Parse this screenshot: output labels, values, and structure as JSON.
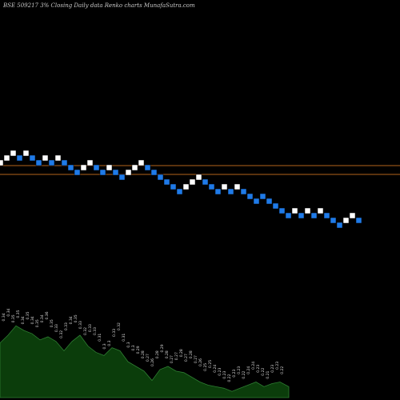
{
  "header": {
    "text": "BSE 509217 3% Closing Daily data Renko charts MunafaSutra.com"
  },
  "chart_data": {
    "type": "renko",
    "box_size": "3%",
    "x_range": [
      0,
      60
    ],
    "y_range": [
      0,
      290
    ],
    "reference_lines": [
      207,
      218
    ],
    "colors": {
      "up_brick": "#ffffff",
      "down_brick": "#1f7ae8",
      "brick_border": "#000000",
      "reference_line": "#b5651d",
      "volume_fill": "#0b3d0b",
      "volume_line": "#2e7d32",
      "background": "#000000"
    },
    "bricks": [
      {
        "x": 0,
        "y": 204,
        "dir": "up"
      },
      {
        "x": 1,
        "y": 198,
        "dir": "up"
      },
      {
        "x": 2,
        "y": 192,
        "dir": "up"
      },
      {
        "x": 3,
        "y": 198,
        "dir": "down"
      },
      {
        "x": 4,
        "y": 192,
        "dir": "up"
      },
      {
        "x": 5,
        "y": 198,
        "dir": "down"
      },
      {
        "x": 6,
        "y": 204,
        "dir": "down"
      },
      {
        "x": 7,
        "y": 198,
        "dir": "up"
      },
      {
        "x": 8,
        "y": 204,
        "dir": "down"
      },
      {
        "x": 9,
        "y": 198,
        "dir": "up"
      },
      {
        "x": 10,
        "y": 204,
        "dir": "down"
      },
      {
        "x": 11,
        "y": 210,
        "dir": "down"
      },
      {
        "x": 12,
        "y": 216,
        "dir": "down"
      },
      {
        "x": 13,
        "y": 210,
        "dir": "up"
      },
      {
        "x": 14,
        "y": 204,
        "dir": "up"
      },
      {
        "x": 15,
        "y": 210,
        "dir": "down"
      },
      {
        "x": 16,
        "y": 216,
        "dir": "down"
      },
      {
        "x": 17,
        "y": 210,
        "dir": "up"
      },
      {
        "x": 18,
        "y": 216,
        "dir": "down"
      },
      {
        "x": 19,
        "y": 222,
        "dir": "down"
      },
      {
        "x": 20,
        "y": 216,
        "dir": "up"
      },
      {
        "x": 21,
        "y": 210,
        "dir": "up"
      },
      {
        "x": 22,
        "y": 204,
        "dir": "up"
      },
      {
        "x": 23,
        "y": 210,
        "dir": "down"
      },
      {
        "x": 24,
        "y": 216,
        "dir": "down"
      },
      {
        "x": 25,
        "y": 222,
        "dir": "down"
      },
      {
        "x": 26,
        "y": 228,
        "dir": "down"
      },
      {
        "x": 27,
        "y": 234,
        "dir": "down"
      },
      {
        "x": 28,
        "y": 240,
        "dir": "down"
      },
      {
        "x": 29,
        "y": 234,
        "dir": "up"
      },
      {
        "x": 30,
        "y": 228,
        "dir": "up"
      },
      {
        "x": 31,
        "y": 222,
        "dir": "up"
      },
      {
        "x": 32,
        "y": 228,
        "dir": "down"
      },
      {
        "x": 33,
        "y": 234,
        "dir": "down"
      },
      {
        "x": 34,
        "y": 240,
        "dir": "down"
      },
      {
        "x": 35,
        "y": 234,
        "dir": "up"
      },
      {
        "x": 36,
        "y": 240,
        "dir": "down"
      },
      {
        "x": 37,
        "y": 234,
        "dir": "up"
      },
      {
        "x": 38,
        "y": 240,
        "dir": "down"
      },
      {
        "x": 39,
        "y": 246,
        "dir": "down"
      },
      {
        "x": 40,
        "y": 252,
        "dir": "down"
      },
      {
        "x": 41,
        "y": 246,
        "dir": "down"
      },
      {
        "x": 42,
        "y": 252,
        "dir": "down"
      },
      {
        "x": 43,
        "y": 258,
        "dir": "down"
      },
      {
        "x": 44,
        "y": 264,
        "dir": "down"
      },
      {
        "x": 45,
        "y": 270,
        "dir": "down"
      },
      {
        "x": 46,
        "y": 264,
        "dir": "up"
      },
      {
        "x": 47,
        "y": 270,
        "dir": "down"
      },
      {
        "x": 48,
        "y": 264,
        "dir": "up"
      },
      {
        "x": 49,
        "y": 270,
        "dir": "down"
      },
      {
        "x": 50,
        "y": 264,
        "dir": "up"
      },
      {
        "x": 51,
        "y": 270,
        "dir": "down"
      },
      {
        "x": 52,
        "y": 276,
        "dir": "down"
      },
      {
        "x": 53,
        "y": 282,
        "dir": "down"
      },
      {
        "x": 54,
        "y": 276,
        "dir": "up"
      },
      {
        "x": 55,
        "y": 270,
        "dir": "up"
      },
      {
        "x": 56,
        "y": 276,
        "dir": "down"
      }
    ],
    "volume": {
      "range": [
        0,
        120
      ],
      "x_range": [
        0,
        361
      ],
      "profile": [
        {
          "x": 0,
          "v": 70
        },
        {
          "x": 10,
          "v": 80
        },
        {
          "x": 20,
          "v": 92
        },
        {
          "x": 30,
          "v": 86
        },
        {
          "x": 40,
          "v": 82
        },
        {
          "x": 50,
          "v": 74
        },
        {
          "x": 60,
          "v": 78
        },
        {
          "x": 70,
          "v": 72
        },
        {
          "x": 80,
          "v": 60
        },
        {
          "x": 90,
          "v": 72
        },
        {
          "x": 100,
          "v": 80
        },
        {
          "x": 110,
          "v": 66
        },
        {
          "x": 120,
          "v": 58
        },
        {
          "x": 130,
          "v": 54
        },
        {
          "x": 140,
          "v": 64
        },
        {
          "x": 150,
          "v": 60
        },
        {
          "x": 160,
          "v": 46
        },
        {
          "x": 170,
          "v": 40
        },
        {
          "x": 180,
          "v": 34
        },
        {
          "x": 190,
          "v": 22
        },
        {
          "x": 200,
          "v": 36
        },
        {
          "x": 210,
          "v": 40
        },
        {
          "x": 220,
          "v": 34
        },
        {
          "x": 230,
          "v": 32
        },
        {
          "x": 240,
          "v": 26
        },
        {
          "x": 250,
          "v": 20
        },
        {
          "x": 260,
          "v": 16
        },
        {
          "x": 270,
          "v": 14
        },
        {
          "x": 280,
          "v": 12
        },
        {
          "x": 290,
          "v": 8
        },
        {
          "x": 300,
          "v": 12
        },
        {
          "x": 310,
          "v": 16
        },
        {
          "x": 320,
          "v": 20
        },
        {
          "x": 330,
          "v": 14
        },
        {
          "x": 340,
          "v": 18
        },
        {
          "x": 350,
          "v": 20
        },
        {
          "x": 361,
          "v": 14
        }
      ],
      "labels": [
        {
          "x": 6,
          "v": 98,
          "text": "0.34"
        },
        {
          "x": 12,
          "v": 104,
          "text": "0.34"
        },
        {
          "x": 18,
          "v": 96,
          "text": "0.35"
        },
        {
          "x": 24,
          "v": 102,
          "text": "0.35"
        },
        {
          "x": 30,
          "v": 94,
          "text": "0.34"
        },
        {
          "x": 36,
          "v": 100,
          "text": "0.35"
        },
        {
          "x": 42,
          "v": 94,
          "text": "0.34"
        },
        {
          "x": 48,
          "v": 90,
          "text": "0.35"
        },
        {
          "x": 54,
          "v": 96,
          "text": "0.34"
        },
        {
          "x": 60,
          "v": 100,
          "text": "0.36"
        },
        {
          "x": 66,
          "v": 90,
          "text": "0.35"
        },
        {
          "x": 72,
          "v": 84,
          "text": "0.33"
        },
        {
          "x": 78,
          "v": 76,
          "text": "0.32"
        },
        {
          "x": 84,
          "v": 86,
          "text": "0.33"
        },
        {
          "x": 90,
          "v": 94,
          "text": "0.34"
        },
        {
          "x": 96,
          "v": 96,
          "text": "0.35"
        },
        {
          "x": 102,
          "v": 88,
          "text": "0.33"
        },
        {
          "x": 108,
          "v": 80,
          "text": "0.32"
        },
        {
          "x": 114,
          "v": 84,
          "text": "0.33"
        },
        {
          "x": 120,
          "v": 80,
          "text": "0.33"
        },
        {
          "x": 126,
          "v": 72,
          "text": "0.31"
        },
        {
          "x": 132,
          "v": 62,
          "text": "0.3"
        },
        {
          "x": 138,
          "v": 66,
          "text": "0.3"
        },
        {
          "x": 144,
          "v": 78,
          "text": "0.33"
        },
        {
          "x": 150,
          "v": 86,
          "text": "0.32"
        },
        {
          "x": 156,
          "v": 72,
          "text": "0.31"
        },
        {
          "x": 162,
          "v": 64,
          "text": "0.3"
        },
        {
          "x": 168,
          "v": 60,
          "text": "0.3"
        },
        {
          "x": 174,
          "v": 56,
          "text": "0.29"
        },
        {
          "x": 180,
          "v": 50,
          "text": "0.28"
        },
        {
          "x": 186,
          "v": 46,
          "text": "0.27"
        },
        {
          "x": 192,
          "v": 40,
          "text": "0.26"
        },
        {
          "x": 198,
          "v": 50,
          "text": "0.28"
        },
        {
          "x": 204,
          "v": 58,
          "text": "0.29"
        },
        {
          "x": 210,
          "v": 50,
          "text": "0.28"
        },
        {
          "x": 216,
          "v": 44,
          "text": "0.27"
        },
        {
          "x": 222,
          "v": 48,
          "text": "0.27"
        },
        {
          "x": 228,
          "v": 52,
          "text": "0.28"
        },
        {
          "x": 234,
          "v": 46,
          "text": "0.27"
        },
        {
          "x": 240,
          "v": 50,
          "text": "0.28"
        },
        {
          "x": 246,
          "v": 44,
          "text": "0.27"
        },
        {
          "x": 252,
          "v": 40,
          "text": "0.26"
        },
        {
          "x": 258,
          "v": 34,
          "text": "0.25"
        },
        {
          "x": 264,
          "v": 38,
          "text": "0.25"
        },
        {
          "x": 270,
          "v": 32,
          "text": "0.24"
        },
        {
          "x": 276,
          "v": 28,
          "text": "0.23"
        },
        {
          "x": 282,
          "v": 24,
          "text": "0.23"
        },
        {
          "x": 288,
          "v": 20,
          "text": "0.22"
        },
        {
          "x": 294,
          "v": 26,
          "text": "0.23"
        },
        {
          "x": 300,
          "v": 30,
          "text": "0.23"
        },
        {
          "x": 306,
          "v": 24,
          "text": "0.22"
        },
        {
          "x": 312,
          "v": 30,
          "text": "0.24"
        },
        {
          "x": 318,
          "v": 36,
          "text": "0.24"
        },
        {
          "x": 324,
          "v": 32,
          "text": "0.23"
        },
        {
          "x": 330,
          "v": 28,
          "text": "0.22"
        },
        {
          "x": 336,
          "v": 24,
          "text": "0.21"
        },
        {
          "x": 342,
          "v": 32,
          "text": "0.23"
        },
        {
          "x": 348,
          "v": 36,
          "text": "0.23"
        },
        {
          "x": 354,
          "v": 30,
          "text": "0.22"
        }
      ]
    }
  }
}
